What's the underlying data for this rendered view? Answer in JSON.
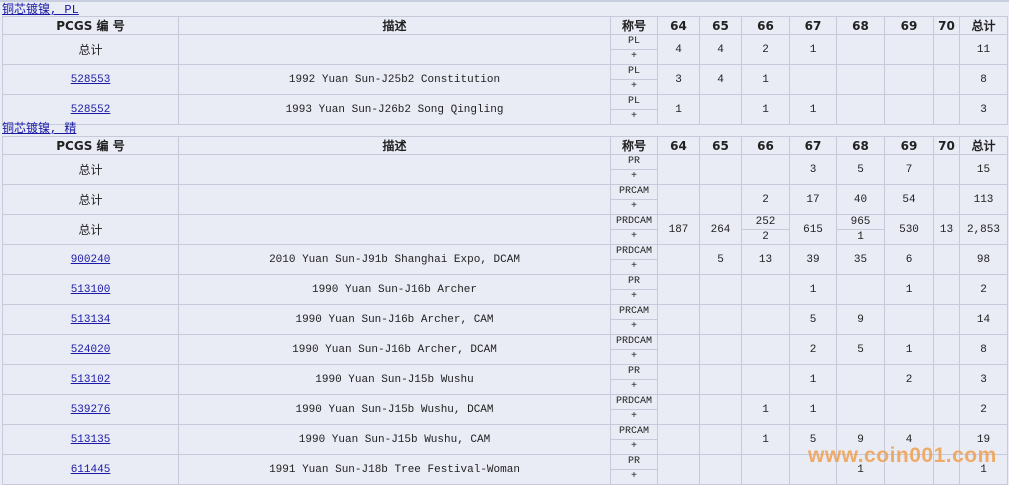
{
  "headers": {
    "pcgs": "PCGS 编 号",
    "desc": "描述",
    "grade": "称号",
    "g64": "64",
    "g65": "65",
    "g66": "66",
    "g67": "67",
    "g68": "68",
    "g69": "69",
    "g70": "70",
    "total": "总计"
  },
  "sections": [
    {
      "title": "铜芯镀镍, PL",
      "rows": [
        {
          "id": "总计",
          "link": false,
          "desc": "",
          "grade": "PL",
          "plus": "+",
          "vals": [
            "4",
            "4",
            "2",
            "1",
            "",
            "",
            "",
            "11"
          ]
        },
        {
          "id": "528553",
          "link": true,
          "desc": "1992 Yuan Sun-J25b2 Constitution",
          "grade": "PL",
          "plus": "+",
          "vals": [
            "3",
            "4",
            "1",
            "",
            "",
            "",
            "",
            "8"
          ]
        },
        {
          "id": "528552",
          "link": true,
          "desc": "1993 Yuan Sun-J26b2 Song Qingling",
          "grade": "PL",
          "plus": "+",
          "vals": [
            "1",
            "",
            "1",
            "1",
            "",
            "",
            "",
            "3"
          ]
        }
      ]
    },
    {
      "title": "铜芯镀镍, 精",
      "rows": [
        {
          "id": "总计",
          "link": false,
          "desc": "",
          "grade": "PR",
          "plus": "+",
          "vals": [
            "",
            "",
            "",
            "3",
            "5",
            "7",
            "",
            "15"
          ]
        },
        {
          "id": "总计",
          "link": false,
          "desc": "",
          "grade": "PRCAM",
          "plus": "+",
          "vals": [
            "",
            "",
            "2",
            "17",
            "40",
            "54",
            "",
            "113"
          ]
        },
        {
          "id": "总计",
          "link": false,
          "desc": "",
          "grade": "PRDCAM",
          "plus": "+",
          "vals": [
            "187",
            "264",
            {
              "top": "252",
              "bottom": "2"
            },
            "615",
            {
              "top": "965",
              "bottom": "1"
            },
            "530",
            "13",
            "2,853"
          ]
        },
        {
          "id": "900240",
          "link": true,
          "desc": "2010 Yuan Sun-J91b Shanghai Expo, DCAM",
          "grade": "PRDCAM",
          "plus": "+",
          "vals": [
            "",
            "5",
            "13",
            "39",
            "35",
            "6",
            "",
            "98"
          ]
        },
        {
          "id": "513100",
          "link": true,
          "desc": "1990 Yuan Sun-J16b Archer",
          "grade": "PR",
          "plus": "+",
          "vals": [
            "",
            "",
            "",
            "1",
            "",
            "1",
            "",
            "2"
          ]
        },
        {
          "id": "513134",
          "link": true,
          "desc": "1990 Yuan Sun-J16b Archer, CAM",
          "grade": "PRCAM",
          "plus": "+",
          "vals": [
            "",
            "",
            "",
            "5",
            "9",
            "",
            "",
            "14"
          ]
        },
        {
          "id": "524020",
          "link": true,
          "desc": "1990 Yuan Sun-J16b Archer, DCAM",
          "grade": "PRDCAM",
          "plus": "+",
          "vals": [
            "",
            "",
            "",
            "2",
            "5",
            "1",
            "",
            "8"
          ]
        },
        {
          "id": "513102",
          "link": true,
          "desc": "1990 Yuan Sun-J15b Wushu",
          "grade": "PR",
          "plus": "+",
          "vals": [
            "",
            "",
            "",
            "1",
            "",
            "2",
            "",
            "3"
          ]
        },
        {
          "id": "539276",
          "link": true,
          "desc": "1990 Yuan Sun-J15b Wushu, DCAM",
          "grade": "PRDCAM",
          "plus": "+",
          "vals": [
            "",
            "",
            "1",
            "1",
            "",
            "",
            "",
            "2"
          ]
        },
        {
          "id": "513135",
          "link": true,
          "desc": "1990 Yuan Sun-J15b Wushu, CAM",
          "grade": "PRCAM",
          "plus": "+",
          "vals": [
            "",
            "",
            "1",
            "5",
            "9",
            "4",
            "",
            "19"
          ]
        },
        {
          "id": "611445",
          "link": true,
          "desc": "1991 Yuan Sun-J18b Tree Festival-Woman",
          "grade": "PR",
          "plus": "+",
          "vals": [
            "",
            "",
            "",
            "",
            "1",
            "",
            "",
            "1"
          ]
        }
      ]
    }
  ],
  "watermark": "www.coin001.com",
  "colors": {
    "background": "#e9ebf5",
    "link": "#1a1aa6",
    "grid": "#c6cadb",
    "watermark": "#f0a050"
  }
}
